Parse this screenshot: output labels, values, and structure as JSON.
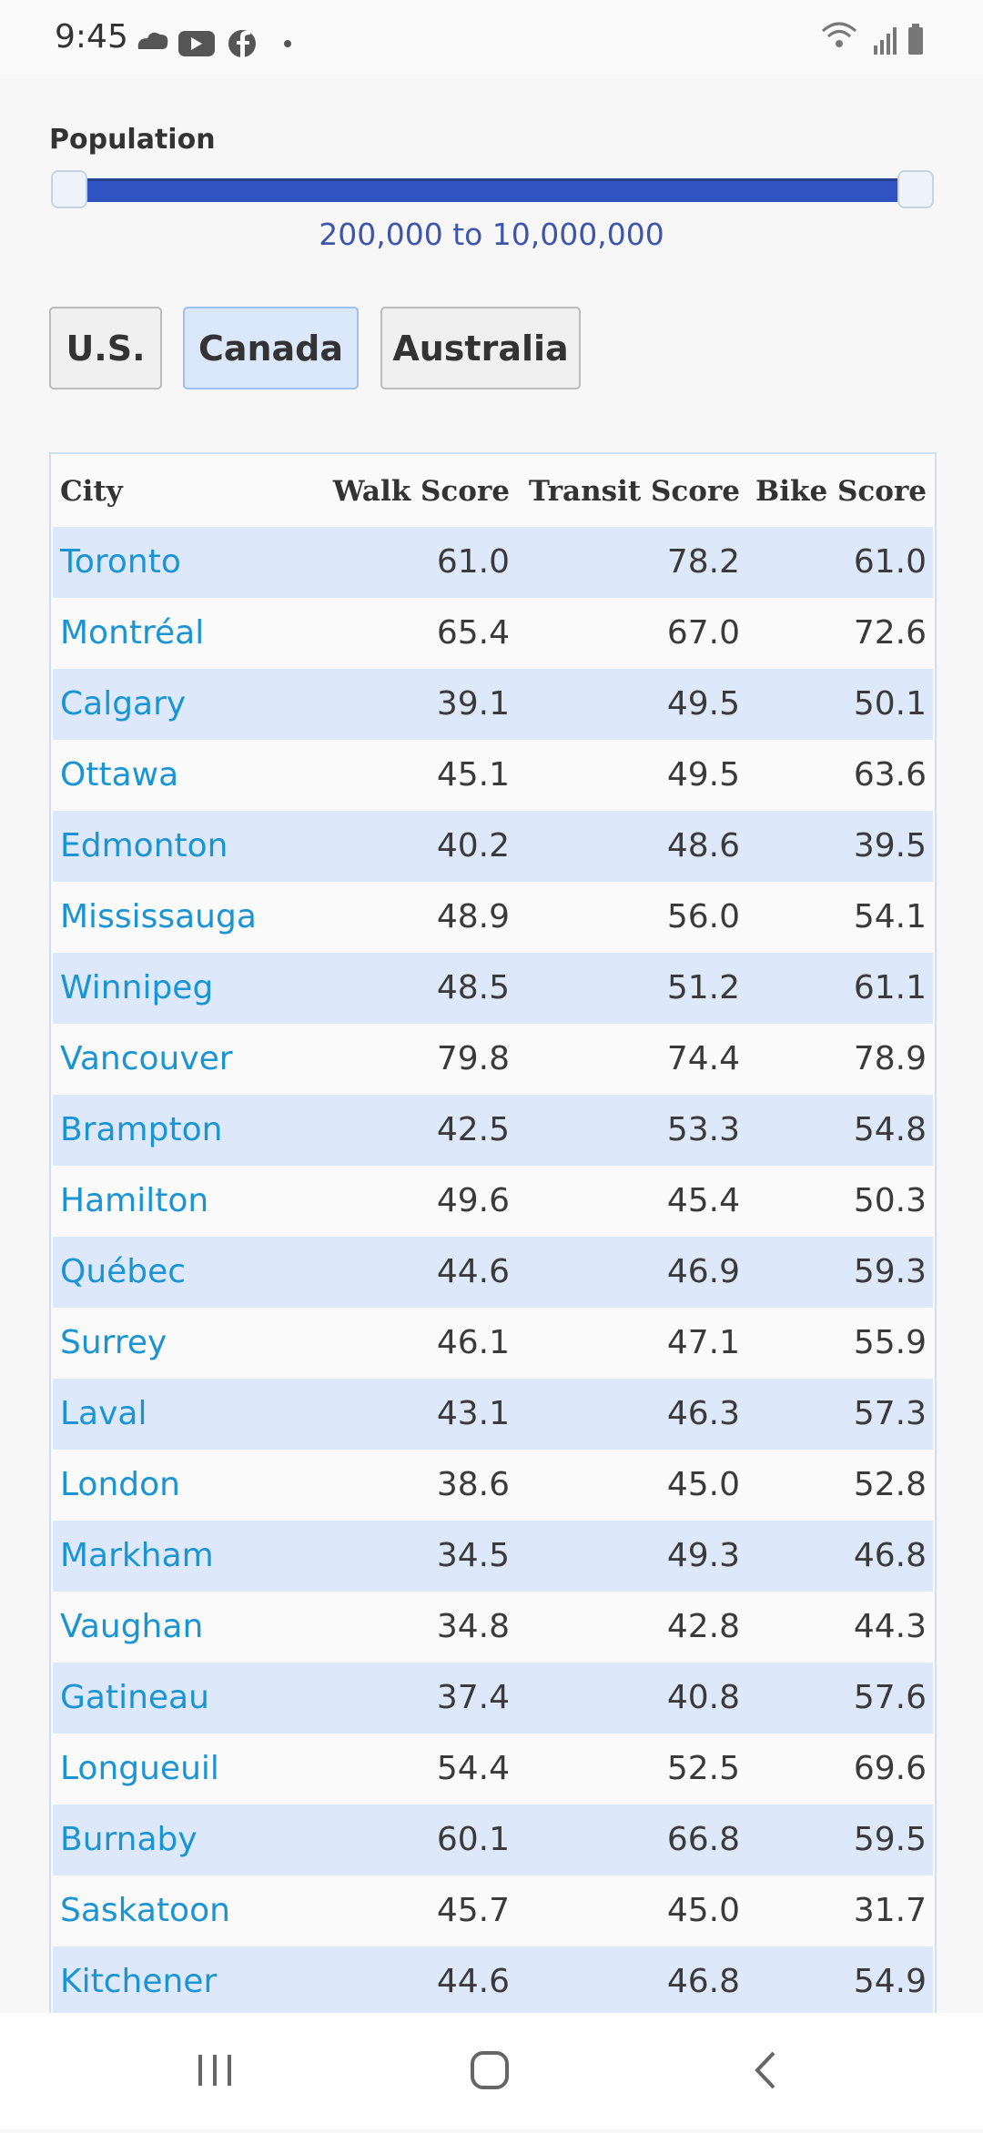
{
  "status_bar": {
    "time": "9:45"
  },
  "filter": {
    "label": "Population",
    "range_text": "200,000 to 10,000,000"
  },
  "tabs": [
    {
      "label": "U.S.",
      "selected": false
    },
    {
      "label": "Canada",
      "selected": true
    },
    {
      "label": "Australia",
      "selected": false
    }
  ],
  "table": {
    "headers": [
      "City",
      "Walk Score",
      "Transit Score",
      "Bike Score"
    ],
    "rows": [
      [
        "Toronto",
        "61.0",
        "78.2",
        "61.0"
      ],
      [
        "Montréal",
        "65.4",
        "67.0",
        "72.6"
      ],
      [
        "Calgary",
        "39.1",
        "49.5",
        "50.1"
      ],
      [
        "Ottawa",
        "45.1",
        "49.5",
        "63.6"
      ],
      [
        "Edmonton",
        "40.2",
        "48.6",
        "39.5"
      ],
      [
        "Mississauga",
        "48.9",
        "56.0",
        "54.1"
      ],
      [
        "Winnipeg",
        "48.5",
        "51.2",
        "61.1"
      ],
      [
        "Vancouver",
        "79.8",
        "74.4",
        "78.9"
      ],
      [
        "Brampton",
        "42.5",
        "53.3",
        "54.8"
      ],
      [
        "Hamilton",
        "49.6",
        "45.4",
        "50.3"
      ],
      [
        "Québec",
        "44.6",
        "46.9",
        "59.3"
      ],
      [
        "Surrey",
        "46.1",
        "47.1",
        "55.9"
      ],
      [
        "Laval",
        "43.1",
        "46.3",
        "57.3"
      ],
      [
        "London",
        "38.6",
        "45.0",
        "52.8"
      ],
      [
        "Markham",
        "34.5",
        "49.3",
        "46.8"
      ],
      [
        "Vaughan",
        "34.8",
        "42.8",
        "44.3"
      ],
      [
        "Gatineau",
        "37.4",
        "40.8",
        "57.6"
      ],
      [
        "Longueuil",
        "54.4",
        "52.5",
        "69.6"
      ],
      [
        "Burnaby",
        "60.1",
        "66.8",
        "59.5"
      ],
      [
        "Saskatoon",
        "45.7",
        "45.0",
        "31.7"
      ],
      [
        "Kitchener",
        "44.6",
        "46.8",
        "54.9"
      ]
    ]
  }
}
